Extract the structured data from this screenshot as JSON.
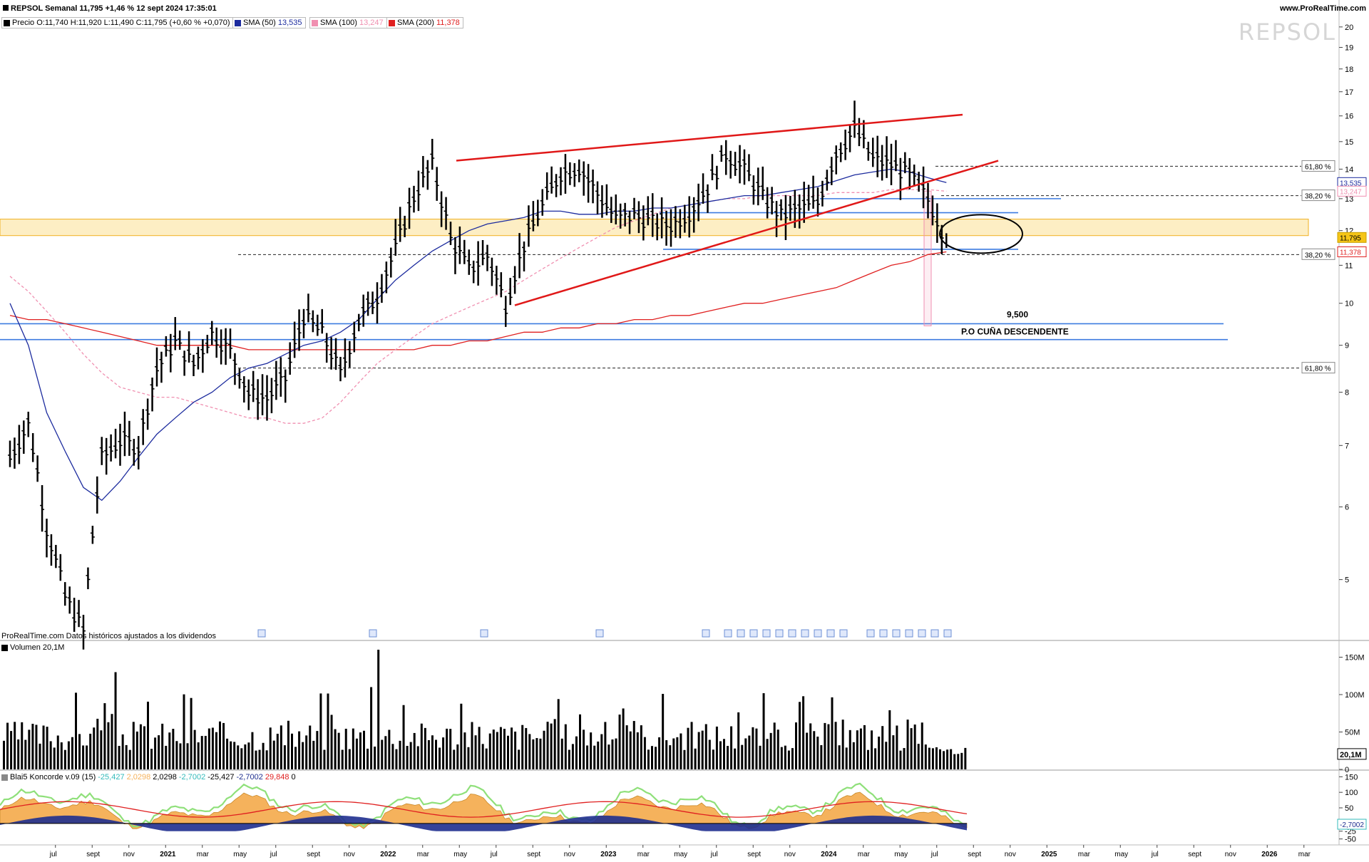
{
  "header": {
    "instrument": "REPSOL Semanal 11,795 +1,46 % 12 sept 2024 17:35:01",
    "site": "www.ProRealTime.com",
    "watermark": "REPSOL",
    "datasource_note": "ProRealTime.com  Datos históricos ajustados a los dividendos"
  },
  "legend": {
    "price": "Precio O:11,740 H:11,920 L:11,490 C:11,795 (+0,60 % +0,070)",
    "sma50_label": "SMA (50)",
    "sma50_value": "13,535",
    "sma100_label": "SMA (100)",
    "sma100_value": "13,247",
    "sma200_label": "SMA (200)",
    "sma200_value": "11,378"
  },
  "colors": {
    "price": "#000000",
    "sma50": "#1c2b9e",
    "sma100": "#f08fb0",
    "sma200": "#e02020",
    "trend": "#e01818",
    "support": "#3d7be0",
    "zone": "#fdeec4",
    "zone_border": "#f0b020",
    "volume": "#000000",
    "konc_orange": "#f5b25c",
    "konc_green": "#8fe07a",
    "konc_blue": "#1f2f8f"
  },
  "annotations": {
    "target_value": "9,500",
    "target_label": "P.O CUÑA DESCENDENTE",
    "fib_top": "61,80 %",
    "fib_mid": "38,20 %",
    "fib_low": "38,20 %",
    "fib_bottom": "61,80 %"
  },
  "volume_panel": {
    "label": "Volumen 20,1M",
    "last": "20,1M",
    "ticks": [
      "150M",
      "100M",
      "50M",
      "0"
    ]
  },
  "oscillator_panel": {
    "label": "Blai5 Koncorde v.09 (15)",
    "values": [
      "-25,427",
      "2,0298",
      "2,0298",
      "-2,7002",
      "-25,427",
      "-2,7002",
      "29,848",
      "0"
    ],
    "last": "-2,7002",
    "ticks": [
      "150",
      "100",
      "50",
      "0",
      "-25",
      "-50"
    ]
  },
  "price_axis": {
    "ticks": [
      "20",
      "19",
      "18",
      "17",
      "16",
      "15",
      "14",
      "13",
      "12",
      "11",
      "10",
      "9",
      "8",
      "7",
      "6",
      "5"
    ],
    "badges": {
      "sma50": "13,535",
      "sma100": "13,247",
      "price": "11,795",
      "sma200": "11,378"
    }
  },
  "time_axis": [
    "jul",
    "sept",
    "nov",
    "2021",
    "mar",
    "may",
    "jul",
    "sept",
    "nov",
    "2022",
    "mar",
    "may",
    "jul",
    "sept",
    "nov",
    "2023",
    "mar",
    "may",
    "jul",
    "sept",
    "nov",
    "2024",
    "mar",
    "may",
    "jul",
    "sept",
    "nov",
    "2025",
    "mar",
    "may",
    "jul",
    "sept",
    "nov",
    "2026",
    "mar"
  ],
  "chart_data": [
    {
      "type": "ohlc",
      "title": "REPSOL Semanal",
      "scale": "log",
      "ylim": [
        4.3,
        20.5
      ],
      "x": [
        "2020-06",
        "2020-07",
        "2020-08",
        "2020-09",
        "2020-10",
        "2020-11",
        "2020-12",
        "2021-01",
        "2021-02",
        "2021-03",
        "2021-04",
        "2021-05",
        "2021-06",
        "2021-07",
        "2021-08",
        "2021-09",
        "2021-10",
        "2021-11",
        "2021-12",
        "2022-01",
        "2022-02",
        "2022-03",
        "2022-04",
        "2022-05",
        "2022-06",
        "2022-07",
        "2022-08",
        "2022-09",
        "2022-10",
        "2022-11",
        "2022-12",
        "2023-01",
        "2023-02",
        "2023-03",
        "2023-04",
        "2023-05",
        "2023-06",
        "2023-07",
        "2023-08",
        "2023-09",
        "2023-10",
        "2023-11",
        "2023-12",
        "2024-01",
        "2024-02",
        "2024-03",
        "2024-04",
        "2024-05",
        "2024-06",
        "2024-07",
        "2024-08",
        "2024-09"
      ],
      "close": [
        6.8,
        7.4,
        5.7,
        4.8,
        4.4,
        6.8,
        7.1,
        7.0,
        8.5,
        9.1,
        8.6,
        9.3,
        8.9,
        8.0,
        7.9,
        8.3,
        9.7,
        9.3,
        8.4,
        9.6,
        10.2,
        11.5,
        13.1,
        14.2,
        11.8,
        10.9,
        11.3,
        10.0,
        11.6,
        12.8,
        13.9,
        14.1,
        13.2,
        12.4,
        12.5,
        12.3,
        12.2,
        12.6,
        13.4,
        14.6,
        14.0,
        13.1,
        12.5,
        12.7,
        12.9,
        14.6,
        15.5,
        14.4,
        14.2,
        13.8,
        13.0,
        11.795
      ],
      "sma50": [
        10.0,
        9.0,
        7.6,
        6.9,
        6.3,
        6.1,
        6.4,
        6.8,
        7.2,
        7.5,
        7.8,
        8.0,
        8.3,
        8.5,
        8.6,
        8.8,
        9.0,
        9.1,
        9.3,
        9.6,
        10.1,
        10.6,
        11.0,
        11.4,
        11.7,
        12.0,
        12.2,
        12.3,
        12.4,
        12.6,
        12.6,
        12.5,
        12.5,
        12.6,
        12.6,
        12.7,
        12.7,
        12.8,
        12.9,
        13.0,
        13.1,
        13.1,
        13.2,
        13.3,
        13.4,
        13.6,
        13.8,
        13.9,
        14.0,
        13.9,
        13.7,
        13.535
      ],
      "sma100": [
        10.7,
        10.3,
        9.8,
        9.3,
        8.8,
        8.4,
        8.1,
        8.0,
        7.9,
        7.9,
        7.8,
        7.7,
        7.6,
        7.5,
        7.5,
        7.4,
        7.4,
        7.5,
        7.8,
        8.2,
        8.6,
        8.9,
        9.2,
        9.5,
        9.7,
        9.9,
        10.1,
        10.3,
        10.6,
        10.9,
        11.2,
        11.5,
        11.8,
        12.1,
        12.3,
        12.5,
        12.7,
        12.8,
        12.9,
        13.0,
        13.0,
        13.1,
        13.1,
        13.1,
        13.1,
        13.2,
        13.2,
        13.2,
        13.3,
        13.3,
        13.3,
        13.247
      ],
      "sma200": [
        9.7,
        9.6,
        9.6,
        9.5,
        9.4,
        9.3,
        9.2,
        9.1,
        9.0,
        9.0,
        9.0,
        9.0,
        9.0,
        8.9,
        8.9,
        8.9,
        8.9,
        8.9,
        8.9,
        8.9,
        8.9,
        8.9,
        8.9,
        9.0,
        9.0,
        9.1,
        9.1,
        9.2,
        9.3,
        9.3,
        9.4,
        9.4,
        9.5,
        9.5,
        9.6,
        9.6,
        9.7,
        9.7,
        9.8,
        9.9,
        10.0,
        10.0,
        10.1,
        10.2,
        10.3,
        10.4,
        10.6,
        10.8,
        11.0,
        11.1,
        11.3,
        11.378
      ],
      "horizontal_levels": [
        {
          "label": "61,80 %",
          "value": 14.1
        },
        {
          "label": "38,20 %",
          "value": 13.1
        },
        {
          "label": "38,20 %",
          "value": 11.3
        },
        {
          "label": "61,80 %",
          "value": 8.5
        },
        {
          "label": "9,500",
          "value": 9.5
        }
      ]
    },
    {
      "type": "bar",
      "title": "Volumen 20,1M",
      "ylim": [
        0,
        160
      ],
      "unit": "M",
      "last": 20.1
    },
    {
      "type": "area",
      "title": "Blai5 Koncorde v.09 (15)",
      "ylim": [
        -60,
        160
      ],
      "last": -2.7002
    }
  ]
}
